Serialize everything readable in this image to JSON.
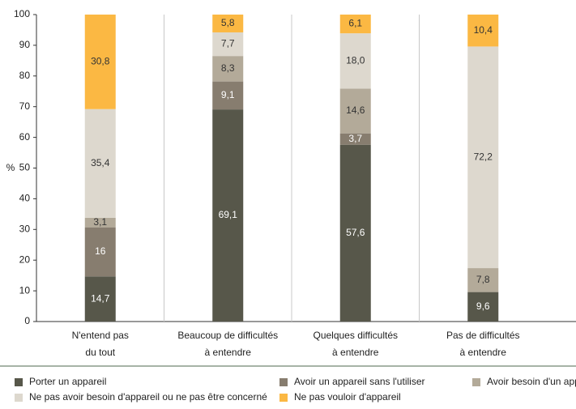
{
  "chart_data": {
    "type": "stacked_bar",
    "ylabel": "%",
    "categories": [
      [
        "N'entend pas",
        "du tout"
      ],
      [
        "Beaucoup de difficultés",
        "à entendre"
      ],
      [
        "Quelques difficultés",
        "à entendre"
      ],
      [
        "Pas de difficultés",
        "à entendre"
      ]
    ],
    "series": [
      {
        "name": "Porter un appareil",
        "color": "#57574a",
        "values": [
          14.7,
          69.1,
          57.6,
          9.6
        ],
        "value_labels": [
          "14,7",
          "69,1",
          "57,6",
          "9,6"
        ]
      },
      {
        "name": "Avoir un appareil sans l'utiliser",
        "color": "#877d6f",
        "values": [
          16,
          9.1,
          3.7,
          null
        ],
        "value_labels": [
          "16",
          "9,1",
          "3,7",
          null
        ]
      },
      {
        "name": "Avoir besoin d'un appareil",
        "color": "#b3aa99",
        "values": [
          3.1,
          8.3,
          14.6,
          7.8
        ],
        "value_labels": [
          "3,1",
          "8,3",
          "14,6",
          "7,8"
        ]
      },
      {
        "name": "Ne pas avoir besoin d'appareil ou ne pas être concerné",
        "color": "#ddd8ce",
        "values": [
          35.4,
          7.7,
          18.0,
          72.2
        ],
        "value_labels": [
          "35,4",
          "7,7",
          "18,0",
          "72,2"
        ]
      },
      {
        "name": "Ne pas vouloir d'appareil",
        "color": "#fbb843",
        "values": [
          30.8,
          5.8,
          6.1,
          10.4
        ],
        "value_labels": [
          "30,8",
          "5,8",
          "6,1",
          "10,4"
        ]
      }
    ],
    "ylim": [
      0,
      100
    ],
    "yticks": [
      0,
      10,
      20,
      30,
      40,
      50,
      60,
      70,
      80,
      90,
      100
    ],
    "grid": false
  }
}
